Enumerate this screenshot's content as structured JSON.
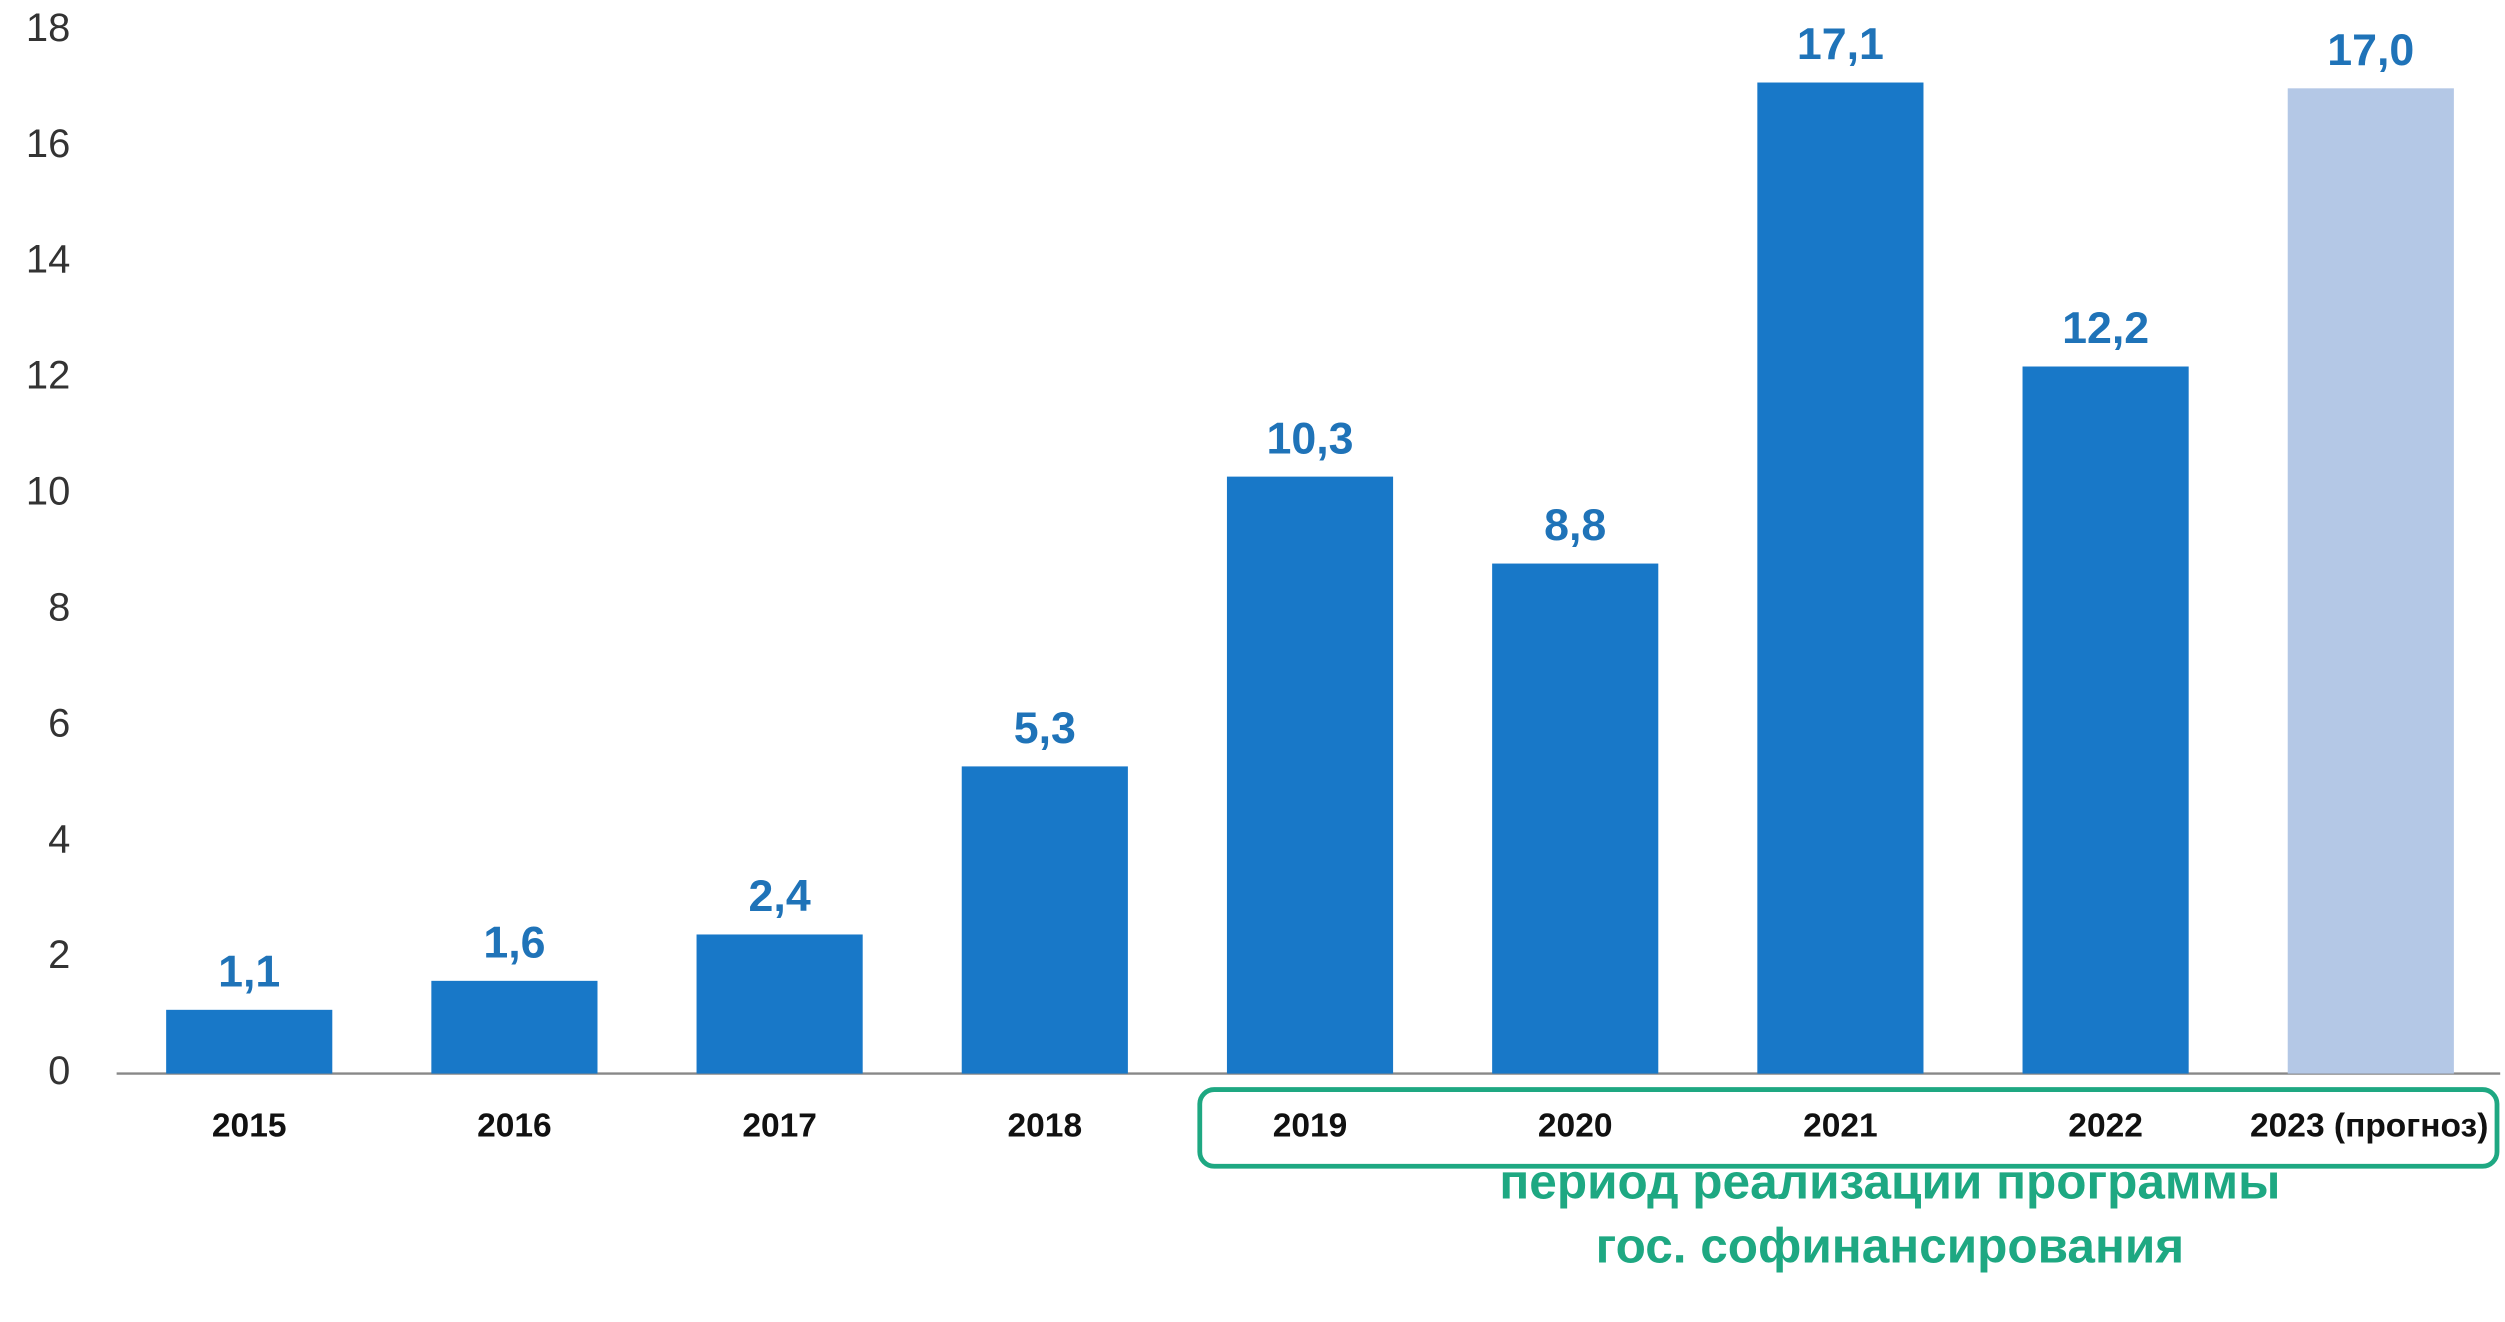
{
  "chart_data": {
    "type": "bar",
    "categories": [
      "2015",
      "2016",
      "2017",
      "2018",
      "2019",
      "2020",
      "2021",
      "2022",
      "2023 (прогноз)"
    ],
    "values": [
      1.1,
      1.6,
      2.4,
      5.3,
      10.3,
      8.8,
      17.1,
      12.2,
      17.0
    ],
    "value_labels": [
      "1,1",
      "1,6",
      "2,4",
      "5,3",
      "10,3",
      "8,8",
      "17,1",
      "12,2",
      "17,0"
    ],
    "colors": [
      "#1878c8",
      "#1878c8",
      "#1878c8",
      "#1878c8",
      "#1878c8",
      "#1878c8",
      "#1878c8",
      "#1878c8",
      "#b4c8e6"
    ],
    "ylim": [
      0,
      18
    ],
    "yticks": [
      0,
      2,
      4,
      6,
      8,
      10,
      12,
      14,
      16,
      18
    ],
    "grid": false,
    "annotation": [
      "период реализации программы",
      "гос. софинансирования"
    ]
  }
}
